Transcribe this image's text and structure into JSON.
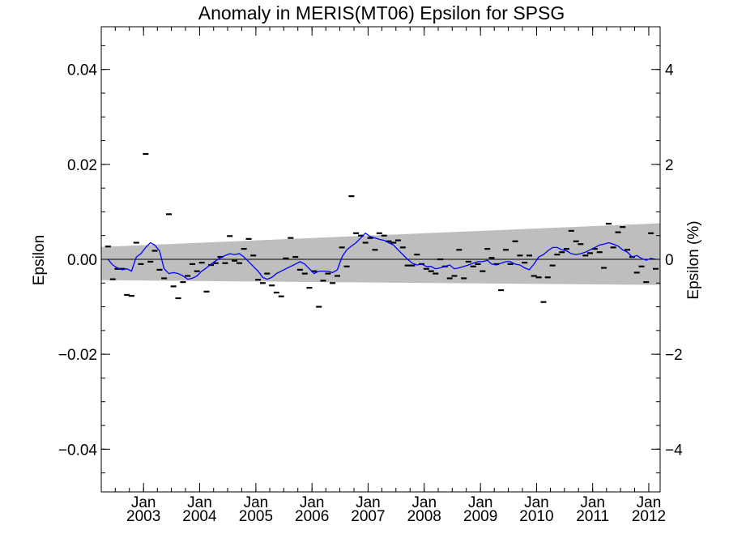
{
  "chart_data": {
    "type": "scatter",
    "title": "Anomaly in MERIS(MT06) Epsilon for SPSG",
    "ylabel": "Epsilon",
    "y2label": "Epsilon (%)",
    "xlim": [
      "2002-04-01",
      "2012-03-15"
    ],
    "ylim": [
      -0.049,
      0.049
    ],
    "y2lim": [
      -4.9,
      4.9
    ],
    "yticks": [
      0.04,
      0.02,
      0.0,
      -0.02,
      -0.04
    ],
    "ytick_labels": [
      "0.04",
      "0.02",
      "0.00",
      "−0.02",
      "−0.04"
    ],
    "y2ticks": [
      4,
      2,
      0,
      -2,
      -4
    ],
    "y2tick_labels": [
      "4",
      "2",
      "0",
      "−2",
      "−4"
    ],
    "xticks": [
      {
        "date": "2003-01-01",
        "month": "Jan",
        "year": "2003"
      },
      {
        "date": "2004-01-01",
        "month": "Jan",
        "year": "2004"
      },
      {
        "date": "2005-01-01",
        "month": "Jan",
        "year": "2005"
      },
      {
        "date": "2006-01-01",
        "month": "Jan",
        "year": "2006"
      },
      {
        "date": "2007-01-01",
        "month": "Jan",
        "year": "2007"
      },
      {
        "date": "2008-01-01",
        "month": "Jan",
        "year": "2008"
      },
      {
        "date": "2009-01-01",
        "month": "Jan",
        "year": "2009"
      },
      {
        "date": "2010-01-01",
        "month": "Jan",
        "year": "2010"
      },
      {
        "date": "2011-01-01",
        "month": "Jan",
        "year": "2011"
      },
      {
        "date": "2012-01-01",
        "month": "Jan",
        "year": "2012"
      }
    ],
    "band": {
      "color": "#bebebe",
      "upper": [
        [
          "2002-04-01",
          0.0026
        ],
        [
          "2012-03-15",
          0.0076
        ]
      ],
      "lower": [
        [
          "2002-04-01",
          -0.0044
        ],
        [
          "2012-03-15",
          -0.0054
        ]
      ]
    },
    "zero_line": 0.0,
    "monthly_points": {
      "color": "#000000",
      "marker": "dash",
      "x": [
        "2002-05",
        "2002-06",
        "2002-07",
        "2002-08",
        "2002-09",
        "2002-10",
        "2002-11",
        "2002-12",
        "2003-01",
        "2003-02",
        "2003-03",
        "2003-04",
        "2003-05",
        "2003-06",
        "2003-07",
        "2003-08",
        "2003-09",
        "2003-10",
        "2003-11",
        "2003-12",
        "2004-01",
        "2004-02",
        "2004-03",
        "2004-04",
        "2004-05",
        "2004-06",
        "2004-07",
        "2004-08",
        "2004-09",
        "2004-10",
        "2004-11",
        "2004-12",
        "2005-01",
        "2005-02",
        "2005-03",
        "2005-04",
        "2005-05",
        "2005-06",
        "2005-07",
        "2005-08",
        "2005-09",
        "2005-10",
        "2005-11",
        "2005-12",
        "2006-01",
        "2006-02",
        "2006-03",
        "2006-04",
        "2006-05",
        "2006-06",
        "2006-07",
        "2006-08",
        "2006-09",
        "2006-10",
        "2006-11",
        "2006-12",
        "2007-01",
        "2007-02",
        "2007-03",
        "2007-04",
        "2007-05",
        "2007-06",
        "2007-07",
        "2007-08",
        "2007-09",
        "2007-10",
        "2007-11",
        "2007-12",
        "2008-01",
        "2008-02",
        "2008-03",
        "2008-04",
        "2008-05",
        "2008-06",
        "2008-07",
        "2008-08",
        "2008-09",
        "2008-10",
        "2008-11",
        "2008-12",
        "2009-01",
        "2009-02",
        "2009-03",
        "2009-04",
        "2009-05",
        "2009-06",
        "2009-07",
        "2009-08",
        "2009-09",
        "2009-10",
        "2009-11",
        "2009-12",
        "2010-01",
        "2010-02",
        "2010-03",
        "2010-04",
        "2010-05",
        "2010-06",
        "2010-07",
        "2010-08",
        "2010-09",
        "2010-10",
        "2010-11",
        "2010-12",
        "2011-01",
        "2011-02",
        "2011-03",
        "2011-04",
        "2011-05",
        "2011-06",
        "2011-07",
        "2011-08",
        "2011-09",
        "2011-10",
        "2011-11",
        "2011-12",
        "2012-01",
        "2012-02"
      ],
      "y": [
        0.0027,
        -0.0042,
        -0.002,
        -0.002,
        -0.0075,
        -0.0077,
        0.0035,
        -0.001,
        0.0222,
        -0.0005,
        0.0018,
        -0.0022,
        -0.004,
        0.0095,
        -0.0057,
        -0.0082,
        -0.0048,
        -0.0035,
        -0.001,
        -0.0025,
        -0.0007,
        -0.0068,
        -0.0012,
        -0.0008,
        0.0005,
        -0.0008,
        0.0049,
        -0.0003,
        -0.0008,
        0.0022,
        0.0043,
        0.0008,
        -0.0043,
        -0.005,
        -0.003,
        -0.0055,
        -0.007,
        -0.0078,
        0.0002,
        0.0045,
        0.0005,
        -0.0022,
        -0.003,
        -0.006,
        -0.0025,
        -0.01,
        -0.0045,
        -0.003,
        -0.005,
        -0.0035,
        0.0025,
        -0.0015,
        0.0133,
        0.0055,
        0.005,
        0.0035,
        0.0045,
        0.002,
        0.0055,
        0.005,
        0.0038,
        0.0035,
        0.004,
        0.0025,
        -0.0013,
        -0.0013,
        0.001,
        -0.001,
        -0.002,
        -0.0025,
        -0.003,
        0.0,
        -0.0015,
        -0.004,
        -0.0035,
        0.002,
        -0.004,
        -0.0005,
        -0.0015,
        -0.001,
        -0.0025,
        0.0022,
        0.0003,
        -0.001,
        -0.0065,
        0.002,
        -0.001,
        0.0038,
        0.0008,
        -0.0007,
        0.0008,
        -0.0035,
        -0.0038,
        -0.009,
        -0.0038,
        -0.0013,
        0.001,
        0.0015,
        0.0022,
        0.006,
        0.0038,
        0.0032,
        0.0008,
        0.0013,
        0.0022,
        0.0015,
        -0.0018,
        0.0075,
        0.0025,
        0.0057,
        0.0068,
        0.002,
        0.0005,
        -0.0028,
        -0.0015,
        -0.0048,
        0.0055,
        -0.002
      ]
    },
    "smooth_line": {
      "color": "#0000ff",
      "x": [
        "2002-05",
        "2002-06",
        "2002-07",
        "2002-08",
        "2002-09",
        "2002-10",
        "2002-11",
        "2002-12",
        "2003-01",
        "2003-02",
        "2003-03",
        "2003-04",
        "2003-05",
        "2003-06",
        "2003-07",
        "2003-08",
        "2003-09",
        "2003-10",
        "2003-11",
        "2003-12",
        "2004-01",
        "2004-02",
        "2004-03",
        "2004-04",
        "2004-05",
        "2004-06",
        "2004-07",
        "2004-08",
        "2004-09",
        "2004-10",
        "2004-11",
        "2004-12",
        "2005-01",
        "2005-02",
        "2005-03",
        "2005-04",
        "2005-05",
        "2005-06",
        "2005-07",
        "2005-08",
        "2005-09",
        "2005-10",
        "2005-11",
        "2005-12",
        "2006-01",
        "2006-02",
        "2006-03",
        "2006-04",
        "2006-05",
        "2006-06",
        "2006-07",
        "2006-08",
        "2006-09",
        "2006-10",
        "2006-11",
        "2006-12",
        "2007-01",
        "2007-02",
        "2007-03",
        "2007-04",
        "2007-05",
        "2007-06",
        "2007-07",
        "2007-08",
        "2007-09",
        "2007-10",
        "2007-11",
        "2007-12",
        "2008-01",
        "2008-02",
        "2008-03",
        "2008-04",
        "2008-05",
        "2008-06",
        "2008-07",
        "2008-08",
        "2008-09",
        "2008-10",
        "2008-11",
        "2008-12",
        "2009-01",
        "2009-02",
        "2009-03",
        "2009-04",
        "2009-05",
        "2009-06",
        "2009-07",
        "2009-08",
        "2009-09",
        "2009-10",
        "2009-11",
        "2009-12",
        "2010-01",
        "2010-02",
        "2010-03",
        "2010-04",
        "2010-05",
        "2010-06",
        "2010-07",
        "2010-08",
        "2010-09",
        "2010-10",
        "2010-11",
        "2010-12",
        "2011-01",
        "2011-02",
        "2011-03",
        "2011-04",
        "2011-05",
        "2011-06",
        "2011-07",
        "2011-08",
        "2011-09",
        "2011-10",
        "2011-11",
        "2011-12",
        "2012-01",
        "2012-02"
      ],
      "y": [
        0.0,
        -0.0012,
        -0.0018,
        -0.0022,
        -0.002,
        -0.0025,
        0.0005,
        0.0012,
        0.0025,
        0.0035,
        0.003,
        0.0018,
        -0.002,
        -0.003,
        -0.0028,
        -0.003,
        -0.0035,
        -0.0042,
        -0.004,
        -0.0035,
        -0.0025,
        -0.0018,
        -0.001,
        -0.0003,
        0.0003,
        0.0008,
        0.0012,
        0.001,
        0.0012,
        0.0005,
        -0.0005,
        -0.0015,
        -0.0025,
        -0.0038,
        -0.0042,
        -0.0038,
        -0.003,
        -0.0025,
        -0.002,
        -0.0015,
        -0.001,
        -0.0005,
        -0.001,
        -0.002,
        -0.003,
        -0.0025,
        -0.0025,
        -0.0025,
        -0.0028,
        -0.0022,
        0.0005,
        0.002,
        0.0028,
        0.0035,
        0.0045,
        0.0055,
        0.0048,
        0.0045,
        0.0042,
        0.004,
        0.0035,
        0.003,
        0.002,
        0.001,
        0.0,
        -0.0008,
        -0.0012,
        -0.001,
        -0.0015,
        -0.0015,
        -0.002,
        -0.0018,
        -0.0015,
        -0.0012,
        -0.002,
        -0.0018,
        -0.0015,
        -0.0012,
        -0.0008,
        -0.0005,
        -0.0005,
        -0.0002,
        -0.001,
        -0.0012,
        -0.0008,
        -0.0005,
        -0.0005,
        -0.001,
        -0.0012,
        -0.0018,
        -0.0022,
        -0.001,
        0.0005,
        0.001,
        0.0018,
        0.0025,
        0.0025,
        0.002,
        0.0018,
        0.0012,
        0.001,
        0.0012,
        0.0015,
        0.002,
        0.0025,
        0.003,
        0.0032,
        0.0035,
        0.0032,
        0.0028,
        0.002,
        0.0015,
        0.0005,
        0.0008,
        0.0002,
        -0.0002,
        0.0002,
        0.0
      ]
    }
  }
}
